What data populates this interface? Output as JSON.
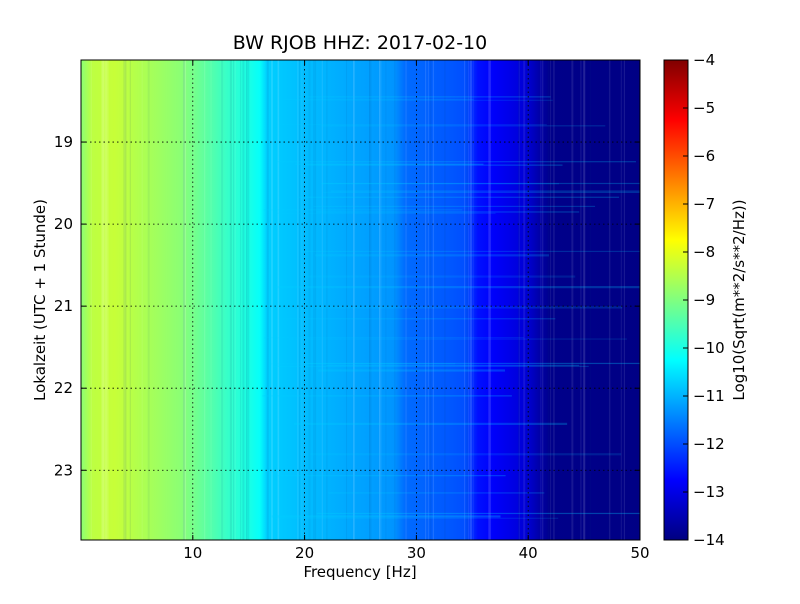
{
  "chart_data": {
    "type": "heatmap",
    "title": "BW RJOB HHZ: 2017-02-10",
    "xlabel": "Frequency [Hz]",
    "ylabel": "Lokalzeit (UTC + 1 Stunde)",
    "xlim": [
      0,
      50
    ],
    "ylim": [
      18.0,
      23.85
    ],
    "y_inverted": true,
    "x_ticks": [
      {
        "value": 10,
        "label": "10"
      },
      {
        "value": 20,
        "label": "20"
      },
      {
        "value": 30,
        "label": "30"
      },
      {
        "value": 40,
        "label": "40"
      },
      {
        "value": 50,
        "label": "50"
      }
    ],
    "y_ticks": [
      {
        "value": 19,
        "label": "19"
      },
      {
        "value": 20,
        "label": "20"
      },
      {
        "value": 21,
        "label": "21"
      },
      {
        "value": 22,
        "label": "22"
      },
      {
        "value": 23,
        "label": "23"
      }
    ],
    "grid": true,
    "colormap": "jet",
    "colorbar": {
      "label": "Log10(Sqrt(m**2/s**2/Hz))",
      "range": [
        -14,
        -4
      ],
      "ticks": [
        {
          "value": -4,
          "label": "−4"
        },
        {
          "value": -5,
          "label": "−5"
        },
        {
          "value": -6,
          "label": "−6"
        },
        {
          "value": -7,
          "label": "−7"
        },
        {
          "value": -8,
          "label": "−8"
        },
        {
          "value": -9,
          "label": "−9"
        },
        {
          "value": -10,
          "label": "−10"
        },
        {
          "value": -11,
          "label": "−11"
        },
        {
          "value": -12,
          "label": "−12"
        },
        {
          "value": -13,
          "label": "−13"
        },
        {
          "value": -14,
          "label": "−14"
        }
      ]
    },
    "spectrum_profile": {
      "frequency_hz": [
        0,
        1,
        3,
        5,
        7,
        9,
        11,
        13,
        15,
        16,
        16.6,
        18,
        20,
        22,
        24,
        26,
        28,
        29,
        31,
        33,
        34.5,
        35.5,
        37,
        38.5,
        40,
        41,
        42,
        50
      ],
      "level": [
        -8.9,
        -8.4,
        -8.3,
        -8.5,
        -8.7,
        -8.9,
        -9.3,
        -9.7,
        -10.0,
        -10.2,
        -10.7,
        -10.8,
        -10.9,
        -11.0,
        -11.1,
        -11.2,
        -11.3,
        -11.7,
        -11.8,
        -11.9,
        -12.0,
        -12.6,
        -12.8,
        -13.0,
        -13.2,
        -13.6,
        -13.9,
        -13.95
      ]
    }
  }
}
